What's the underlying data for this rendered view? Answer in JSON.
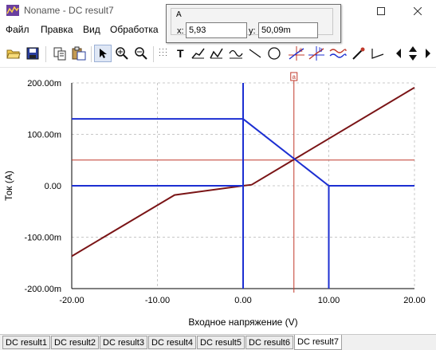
{
  "window": {
    "title": "Noname - DC result7"
  },
  "menu": {
    "items": [
      "Файл",
      "Правка",
      "Вид",
      "Обработка"
    ]
  },
  "cursor_popup": {
    "group_label": "A",
    "x_label": "x:",
    "x_value": "5,93",
    "y_label": "y:",
    "y_value": "50,09m"
  },
  "toolbar": {
    "icons": [
      "open-folder",
      "save",
      "copy",
      "paste",
      "pointer",
      "zoom-in",
      "zoom-100",
      "grid",
      "text",
      "wire-tool",
      "wire-tool-2",
      "formula",
      "line",
      "circle",
      "cursor-a",
      "cursor-b",
      "waveform",
      "probe",
      "angle",
      "scroll-left",
      "scroll-up-down"
    ]
  },
  "tabs": [
    "DC result1",
    "DC result2",
    "DC result3",
    "DC result4",
    "DC result5",
    "DC result6",
    "DC result7"
  ],
  "active_tab": 6,
  "colors": {
    "curve1": "#7a1416",
    "curve2": "#1c2fd2",
    "cursor": "#c0392b",
    "grid": "#c8c8c8"
  },
  "chart_data": {
    "type": "line",
    "xlabel": "Входное напряжение (V)",
    "ylabel": "Ток (A)",
    "xlim": [
      -20,
      20
    ],
    "ylim": [
      -200,
      200
    ],
    "x_ticks": [
      -20,
      -10,
      0,
      10,
      20
    ],
    "x_tick_labels": [
      "-20.00",
      "-10.00",
      "0.00",
      "10.00",
      "20.00"
    ],
    "y_ticks": [
      200,
      100,
      0,
      -100,
      -200
    ],
    "y_tick_labels": [
      "200.00m",
      "100.00m",
      "0.00",
      "-100.00m",
      "-200.00m"
    ],
    "grid": true,
    "series": [
      {
        "points": [
          [
            -20,
            -137
          ],
          [
            -8,
            -18
          ],
          [
            0,
            0
          ],
          [
            1,
            2
          ],
          [
            20,
            191
          ]
        ]
      },
      {
        "points": [
          [
            -20,
            130
          ],
          [
            0,
            130
          ],
          [
            10,
            0
          ],
          [
            20,
            0
          ]
        ]
      },
      {
        "points": [
          [
            0,
            200
          ],
          [
            0,
            -200
          ]
        ]
      },
      {
        "points": [
          [
            -20,
            0
          ],
          [
            0,
            0
          ]
        ]
      },
      {
        "points": [
          [
            10,
            0
          ],
          [
            10,
            -200
          ]
        ]
      }
    ],
    "cursor": {
      "label": "a",
      "x": 5.93,
      "y": 50.09
    }
  }
}
